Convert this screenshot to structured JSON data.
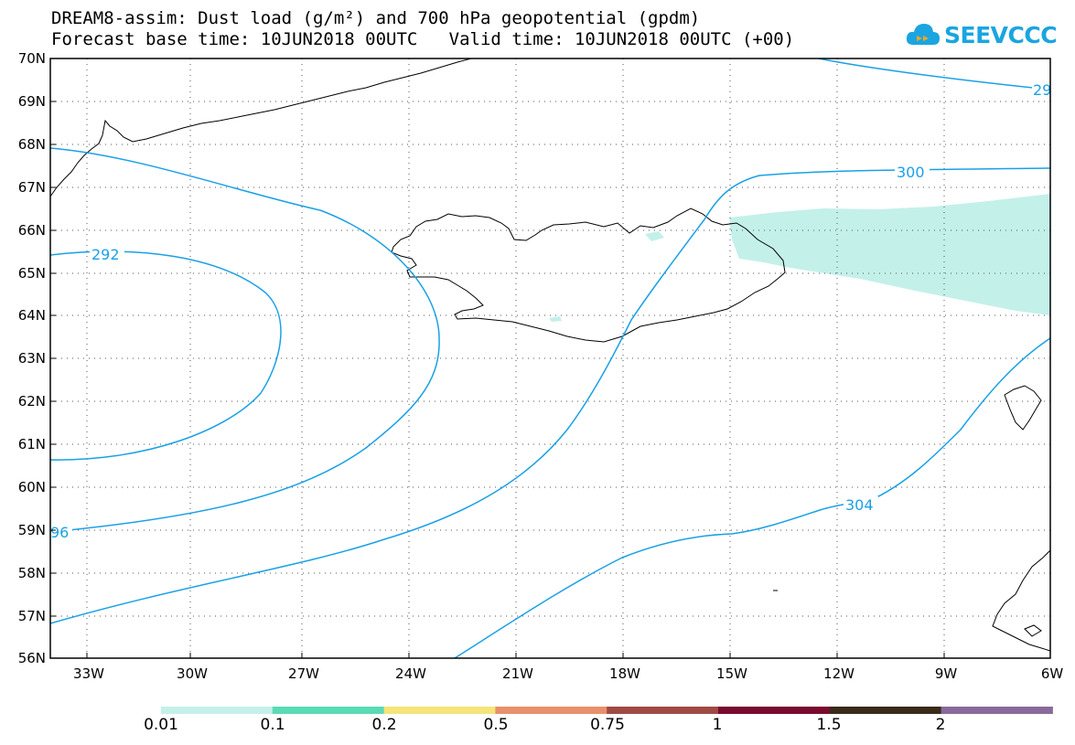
{
  "header": {
    "title_line1": "DREAM8-assim: Dust load (g/m²) and 700 hPa geopotential (gpdm)",
    "title_line2": "Forecast base time: 10JUN2018 00UTC   Valid time: 10JUN2018 00UTC (+00)"
  },
  "logo": {
    "text": "SEEVCCC",
    "icon": "cloud-logo-icon",
    "color": "#1aa5e0"
  },
  "map": {
    "lat_labels": [
      "70N",
      "69N",
      "68N",
      "67N",
      "66N",
      "65N",
      "64N",
      "63N",
      "62N",
      "61N",
      "60N",
      "59N",
      "58N",
      "57N",
      "56N"
    ],
    "lon_labels": [
      "33W",
      "30W",
      "27W",
      "24W",
      "21W",
      "18W",
      "15W",
      "12W",
      "9W",
      "6W"
    ],
    "contour_color": "#1aa0e6",
    "contour_labels": {
      "c292": "292",
      "c296": "96",
      "c300": "300",
      "c304": "304",
      "c29": "29"
    },
    "dust_fill_color": "#c4f0ea",
    "coastline_color": "#000000"
  },
  "colorbar": {
    "colors": [
      "#c4f0ea",
      "#59dbb5",
      "#f5e47a",
      "#e8906a",
      "#a04a44",
      "#7a0a30",
      "#3a2a1a",
      "#8a6a9a"
    ],
    "labels": [
      "0.01",
      "0.1",
      "0.2",
      "0.5",
      "0.75",
      "1",
      "1.5",
      "2"
    ]
  }
}
